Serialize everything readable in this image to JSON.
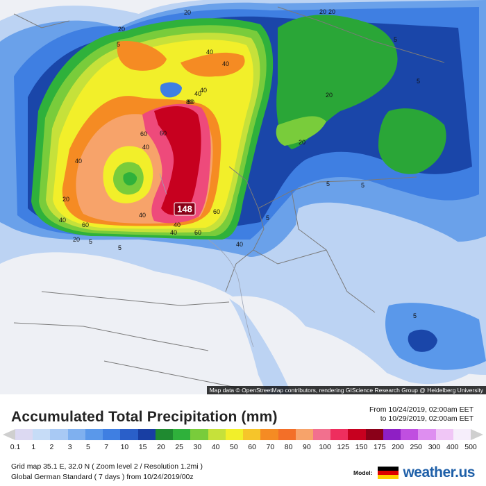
{
  "map": {
    "attribution": "Map data © OpenStreetMap contributors, rendering GIScience Research Group @ Heidelberg University",
    "max_marker": "148",
    "contour_labels": [
      "20",
      "40",
      "60",
      "40",
      "20",
      "40",
      "40",
      "40",
      "40",
      "60",
      "80",
      "60",
      "40",
      "20",
      "5",
      "5",
      "20",
      "5",
      "60",
      "40",
      "40",
      "60",
      "40",
      "20",
      "20",
      "40",
      "80",
      "5",
      "5",
      "5",
      "20",
      "20",
      "5",
      "5",
      "5"
    ],
    "colors": {
      "bg": "#eef0f5",
      "light_blue": "#bcd3f3",
      "mid_blue": "#6aa1ea",
      "blue": "#3f7fe2",
      "dark_blue": "#1a46a9",
      "green": "#2aa637",
      "light_green": "#78cb3a",
      "yellow_green": "#c6e13a",
      "yellow": "#f5ef2c",
      "orange": "#f58b23",
      "salmon": "#f7a36a",
      "pink": "#ee4a7b",
      "red": "#c7001f",
      "border": "#7a7a7a"
    }
  },
  "legend": {
    "title": "Accumulated Total Precipitation (mm)",
    "from_line": "From 10/24/2019, 02:00am EET",
    "to_line": "to 10/29/2019, 02:00am EET",
    "scale_labels": [
      "0.1",
      "1",
      "2",
      "3",
      "5",
      "7",
      "10",
      "15",
      "20",
      "25",
      "30",
      "40",
      "50",
      "60",
      "70",
      "80",
      "90",
      "100",
      "125",
      "150",
      "175",
      "200",
      "250",
      "300",
      "400",
      "500"
    ],
    "scale_colors": [
      "#dcd9f2",
      "#c6dcf7",
      "#a8c9f4",
      "#7fb0ef",
      "#5a98ea",
      "#3f7fe2",
      "#2a5fc9",
      "#183ea3",
      "#1f8a30",
      "#2fb13b",
      "#79cc3b",
      "#c6e13a",
      "#f2ef2a",
      "#f6c52a",
      "#f58b23",
      "#f36f28",
      "#f7a36a",
      "#f2708e",
      "#ee2e5e",
      "#c7001f",
      "#8a0018",
      "#8e1fc4",
      "#c04fe0",
      "#de8ef0",
      "#f0c6f6",
      "#f6eefb"
    ],
    "info_line1": "Grid map 35.1 E, 32.0 N  ( Zoom level 2 / Resolution 1.2mi )",
    "info_line2": "Global German Standard ( 7 days ) from 10/24/2019/00z",
    "model_label": "Model:",
    "brand_name": "weather.us",
    "flag_colors": [
      "#000000",
      "#dd0000",
      "#ffce00"
    ]
  }
}
